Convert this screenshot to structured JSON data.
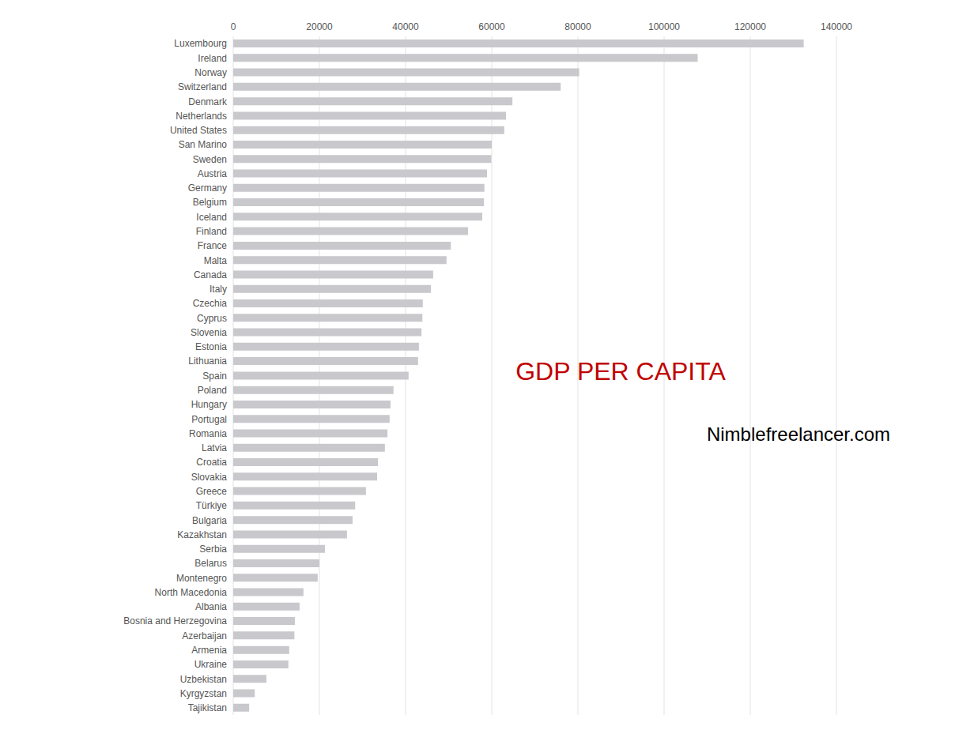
{
  "chart_data": {
    "type": "bar",
    "orientation": "horizontal",
    "title": "GDP PER CAPITA",
    "annotations": [
      "Nimblefreelancer.com"
    ],
    "categories": [
      "Luxembourg",
      "Ireland",
      "Norway",
      "Switzerland",
      "Denmark",
      "Netherlands",
      "United States",
      "San Marino",
      "Sweden",
      "Austria",
      "Germany",
      "Belgium",
      "Iceland",
      "Finland",
      "France",
      "Malta",
      "Canada",
      "Italy",
      "Czechia",
      "Cyprus",
      "Slovenia",
      "Estonia",
      "Lithuania",
      "Spain",
      "Poland",
      "Hungary",
      "Portugal",
      "Romania",
      "Latvia",
      "Croatia",
      "Slovakia",
      "Greece",
      "Türkiye",
      "Bulgaria",
      "Kazakhstan",
      "Serbia",
      "Belarus",
      "Montenegro",
      "North Macedonia",
      "Albania",
      "Bosnia and Herzegovina",
      "Azerbaijan",
      "Armenia",
      "Ukraine",
      "Uzbekistan",
      "Kyrgyzstan",
      "Tajikistan"
    ],
    "values": [
      132400,
      107800,
      80300,
      76000,
      64800,
      63300,
      62900,
      60000,
      59900,
      58900,
      58300,
      58200,
      57800,
      54500,
      50500,
      49500,
      46400,
      45900,
      44000,
      43900,
      43700,
      43100,
      42900,
      40700,
      37200,
      36500,
      36300,
      35800,
      35200,
      33600,
      33400,
      30800,
      28300,
      27700,
      26400,
      21300,
      20000,
      19600,
      16300,
      15400,
      14300,
      14200,
      13000,
      12800,
      7700,
      5000,
      3700
    ],
    "color": "#c9c9cd",
    "xlim": [
      0,
      140000
    ],
    "xticks": [
      0,
      20000,
      40000,
      60000,
      80000,
      100000,
      120000,
      140000
    ],
    "grid": true
  }
}
